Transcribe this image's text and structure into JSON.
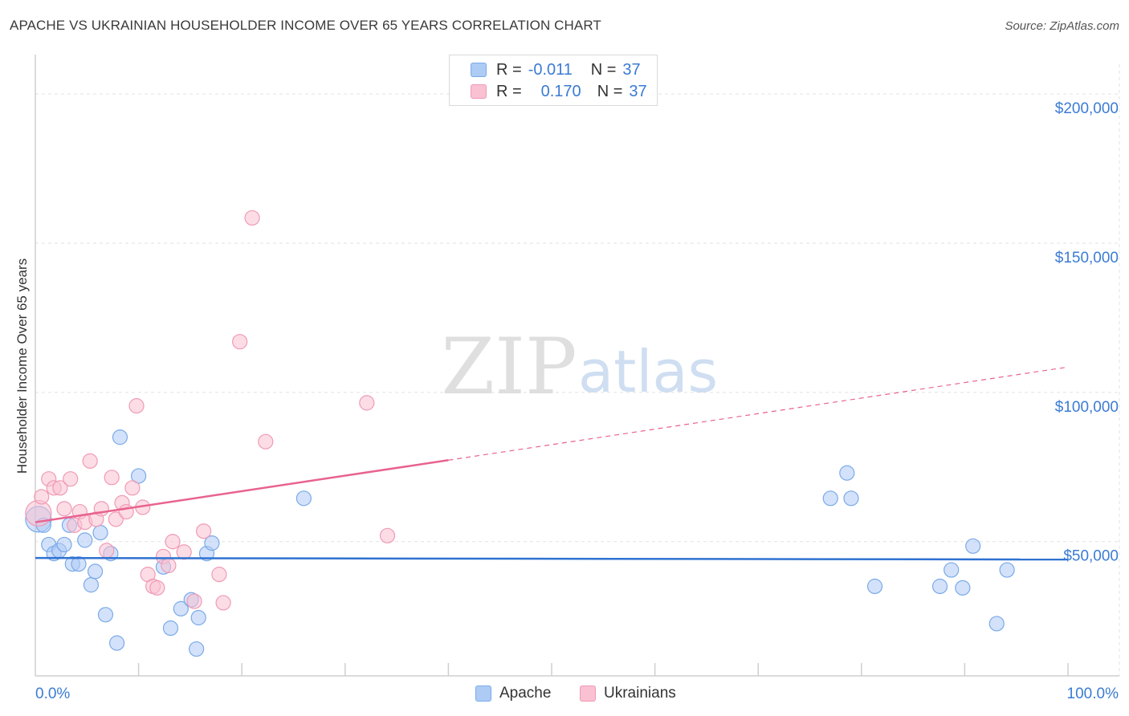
{
  "title": "APACHE VS UKRAINIAN HOUSEHOLDER INCOME OVER 65 YEARS CORRELATION CHART",
  "source": "Source: ZipAtlas.com",
  "watermark": {
    "zip": "ZIP",
    "atlas": "atlas"
  },
  "legend_top": {
    "rows": [
      {
        "r_label": "R =",
        "r_value": "-0.011",
        "n_label": "N =",
        "n_value": "37",
        "color": "#aecbf5"
      },
      {
        "r_label": "R =",
        "r_value": "0.170",
        "n_label": "N =",
        "n_value": "37",
        "color": "#f9c1d2"
      }
    ]
  },
  "legend_bottom": [
    "Apache",
    "Ukrainians"
  ],
  "chart_data": {
    "type": "scatter",
    "title": "APACHE VS UKRAINIAN HOUSEHOLDER INCOME OVER 65 YEARS CORRELATION CHART",
    "xlabel": "",
    "ylabel": "Householder Income Over 65 years",
    "xlim": [
      0,
      100
    ],
    "ylim": [
      5000,
      210000
    ],
    "x_tick_labels": [
      "0.0%",
      "100.0%"
    ],
    "y_ticks": [
      50000,
      100000,
      150000,
      200000
    ],
    "y_tick_labels": [
      "$50,000",
      "$100,000",
      "$150,000",
      "$200,000"
    ],
    "grid": true,
    "series": [
      {
        "name": "Apache",
        "color": "#aecbf5",
        "stroke": "#7aaae8",
        "line_color": "#2f72d1",
        "trend": {
          "x": [
            0,
            100
          ],
          "y": [
            44500,
            44000
          ],
          "dash_from": null
        },
        "points": [
          {
            "x": 0.3,
            "y": 57500,
            "big": true
          },
          {
            "x": 0.8,
            "y": 55500
          },
          {
            "x": 1.3,
            "y": 49000
          },
          {
            "x": 1.8,
            "y": 46000
          },
          {
            "x": 2.3,
            "y": 47000
          },
          {
            "x": 2.8,
            "y": 49000
          },
          {
            "x": 3.3,
            "y": 55500
          },
          {
            "x": 3.6,
            "y": 42500
          },
          {
            "x": 4.2,
            "y": 42500
          },
          {
            "x": 4.8,
            "y": 50500
          },
          {
            "x": 5.4,
            "y": 35500
          },
          {
            "x": 5.8,
            "y": 40000
          },
          {
            "x": 6.3,
            "y": 53000
          },
          {
            "x": 6.8,
            "y": 25500
          },
          {
            "x": 7.3,
            "y": 46000
          },
          {
            "x": 7.9,
            "y": 16000
          },
          {
            "x": 8.2,
            "y": 85000
          },
          {
            "x": 10.0,
            "y": 72000
          },
          {
            "x": 12.4,
            "y": 41500
          },
          {
            "x": 13.1,
            "y": 21000
          },
          {
            "x": 14.1,
            "y": 27500
          },
          {
            "x": 15.1,
            "y": 30500
          },
          {
            "x": 15.6,
            "y": 14000
          },
          {
            "x": 15.8,
            "y": 24500
          },
          {
            "x": 16.6,
            "y": 46000
          },
          {
            "x": 17.1,
            "y": 49500
          },
          {
            "x": 26.0,
            "y": 64500
          },
          {
            "x": 77.0,
            "y": 64500
          },
          {
            "x": 78.6,
            "y": 73000
          },
          {
            "x": 79.0,
            "y": 64500
          },
          {
            "x": 81.3,
            "y": 35000
          },
          {
            "x": 87.6,
            "y": 35000
          },
          {
            "x": 88.7,
            "y": 40500
          },
          {
            "x": 89.8,
            "y": 34500
          },
          {
            "x": 90.8,
            "y": 48500
          },
          {
            "x": 93.1,
            "y": 22500
          },
          {
            "x": 94.1,
            "y": 40500
          }
        ]
      },
      {
        "name": "Ukrainians",
        "color": "#f9c1d2",
        "stroke": "#f09ab5",
        "line_color": "#e8638f",
        "trend": {
          "x": [
            0,
            100
          ],
          "y": [
            56500,
            108500
          ],
          "dash_from": 40
        },
        "points": [
          {
            "x": 0.3,
            "y": 59500,
            "big": true
          },
          {
            "x": 0.6,
            "y": 65000
          },
          {
            "x": 1.3,
            "y": 71000
          },
          {
            "x": 1.8,
            "y": 68000
          },
          {
            "x": 2.4,
            "y": 68000
          },
          {
            "x": 2.8,
            "y": 61000
          },
          {
            "x": 3.4,
            "y": 71000
          },
          {
            "x": 3.8,
            "y": 55500
          },
          {
            "x": 4.3,
            "y": 60000
          },
          {
            "x": 4.8,
            "y": 56500
          },
          {
            "x": 5.3,
            "y": 77000
          },
          {
            "x": 5.9,
            "y": 57500
          },
          {
            "x": 6.4,
            "y": 61000
          },
          {
            "x": 6.9,
            "y": 47000
          },
          {
            "x": 7.4,
            "y": 71500
          },
          {
            "x": 7.8,
            "y": 57500
          },
          {
            "x": 8.4,
            "y": 63000
          },
          {
            "x": 8.8,
            "y": 60000
          },
          {
            "x": 9.4,
            "y": 68000
          },
          {
            "x": 9.8,
            "y": 95500
          },
          {
            "x": 10.4,
            "y": 61500
          },
          {
            "x": 10.9,
            "y": 39000
          },
          {
            "x": 11.4,
            "y": 35000
          },
          {
            "x": 11.8,
            "y": 34500
          },
          {
            "x": 12.4,
            "y": 45000
          },
          {
            "x": 12.9,
            "y": 42000
          },
          {
            "x": 13.3,
            "y": 50000
          },
          {
            "x": 14.4,
            "y": 46500
          },
          {
            "x": 15.4,
            "y": 30000
          },
          {
            "x": 16.3,
            "y": 53500
          },
          {
            "x": 17.8,
            "y": 39000
          },
          {
            "x": 18.2,
            "y": 29500
          },
          {
            "x": 19.8,
            "y": 117000
          },
          {
            "x": 21.0,
            "y": 158500
          },
          {
            "x": 22.3,
            "y": 83500
          },
          {
            "x": 32.1,
            "y": 96500
          },
          {
            "x": 34.1,
            "y": 52000
          }
        ]
      }
    ]
  }
}
